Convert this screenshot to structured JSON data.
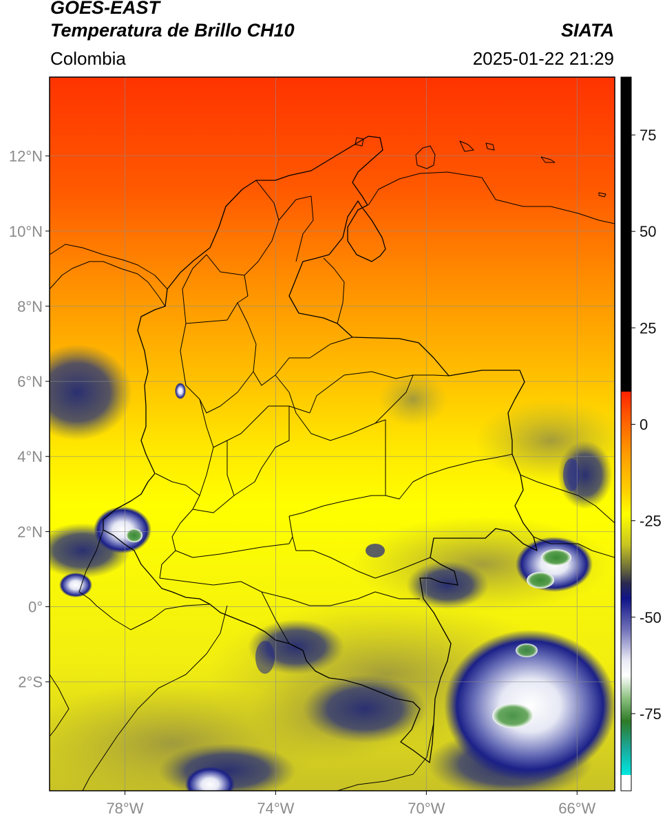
{
  "header": {
    "satellite": "GOES-EAST",
    "product": "Temperatura de Brillo CH10",
    "region": "Colombia",
    "source": "SIATA",
    "datetime": "2025-01-22 21:29"
  },
  "map": {
    "lon_range": [
      -80,
      -65
    ],
    "lat_range": [
      -4.9,
      14.1
    ],
    "lon_ticks": [
      {
        "value": -78,
        "label": "78°W"
      },
      {
        "value": -74,
        "label": "74°W"
      },
      {
        "value": -70,
        "label": "70°W"
      },
      {
        "value": -66,
        "label": "66°W"
      }
    ],
    "lat_ticks": [
      {
        "value": 12,
        "label": "12°N"
      },
      {
        "value": 10,
        "label": "10°N"
      },
      {
        "value": 8,
        "label": "8°N"
      },
      {
        "value": 6,
        "label": "6°N"
      },
      {
        "value": 4,
        "label": "4°N"
      },
      {
        "value": 2,
        "label": "2°N"
      },
      {
        "value": 0,
        "label": "0°"
      },
      {
        "value": -2,
        "label": "2°S"
      }
    ],
    "grid": true,
    "colors": {
      "warm_north": "#ff3300",
      "orange": "#ff8a00",
      "yellow": "#ffff00",
      "olive": "#c9c224",
      "cloud_dark": "#1b1f7a",
      "cloud_white": "#f0f2f8",
      "cloud_green": "#4a8c3a",
      "border": "#000000"
    }
  },
  "colorbar": {
    "range": [
      -95,
      90
    ],
    "ticks": [
      {
        "value": 75,
        "label": "75"
      },
      {
        "value": 50,
        "label": "50"
      },
      {
        "value": 25,
        "label": "25"
      },
      {
        "value": 0,
        "label": "0"
      },
      {
        "value": -25,
        "label": "-25"
      },
      {
        "value": -50,
        "label": "-50"
      },
      {
        "value": -75,
        "label": "-75"
      }
    ]
  }
}
